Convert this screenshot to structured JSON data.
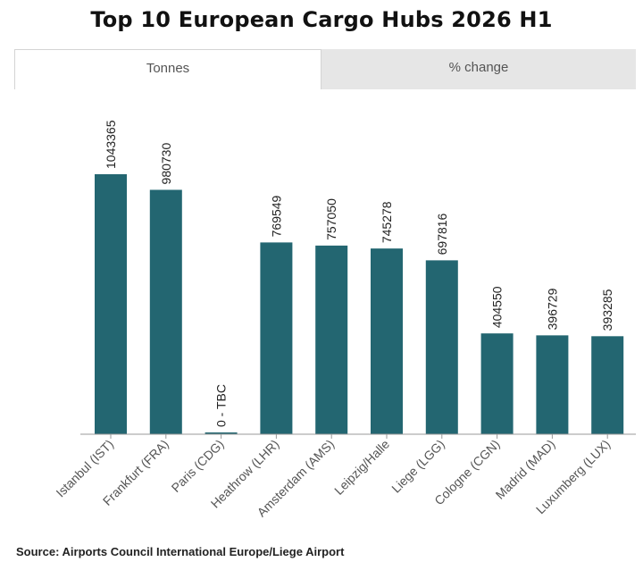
{
  "title": "Top 10 European Cargo Hubs 2026 H1",
  "tabs": [
    {
      "label": "Tonnes",
      "active": true
    },
    {
      "label": "% change",
      "active": false
    }
  ],
  "source": "Source: Airports Council International Europe/Liege Airport",
  "colors": {
    "bar": "#236671",
    "axis": "#9a9a9a"
  },
  "chart_data": {
    "type": "bar",
    "categories": [
      "Istanbul (IST)",
      "Frankfurt (FRA)",
      "Paris (CDG)",
      "Heathrow (LHR)",
      "Amsterdam (AMS)",
      "Leipzig/Halle",
      "Liege (LGG)",
      "Cologne (CGN)",
      "Madrid (MAD)",
      "Luxumberg (LUX)"
    ],
    "values": [
      1043365,
      980730,
      0,
      769549,
      757050,
      745278,
      697816,
      404550,
      396729,
      393285
    ],
    "data_labels": [
      "1043365",
      "980730",
      "0 - TBC",
      "769549",
      "757050",
      "745278",
      "697816",
      "404550",
      "396729",
      "393285"
    ],
    "ylim": [
      0,
      1043365
    ],
    "grid": false
  }
}
